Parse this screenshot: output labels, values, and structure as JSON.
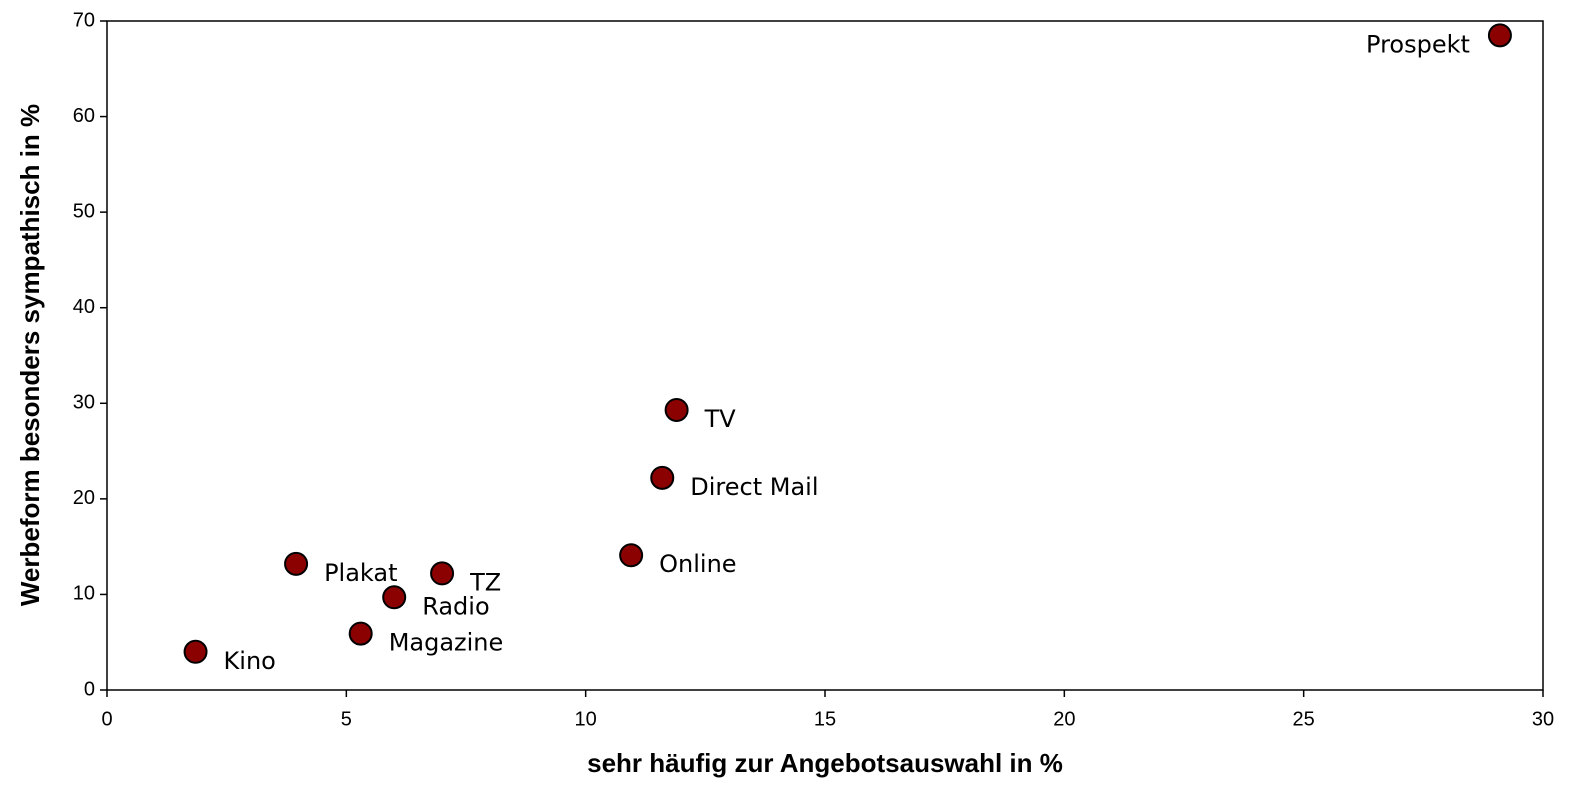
{
  "chart_data": {
    "type": "scatter",
    "x_label": "sehr häufig zur Angebotsauswahl in %",
    "y_label": "Werbeform besonders sympathisch in %",
    "labels": [
      "Prospekt",
      "TV",
      "Direct Mail",
      "Online",
      "TZ",
      "Plakat",
      "Radio",
      "Magazine",
      "Kino"
    ],
    "x": [
      29.1,
      11.9,
      11.6,
      10.95,
      7.0,
      3.95,
      6.0,
      5.3,
      1.85
    ],
    "values": [
      68.5,
      29.3,
      22.2,
      14.1,
      12.2,
      13.2,
      9.7,
      5.9,
      4.0
    ],
    "color": "#8b0000",
    "xlim": [
      0,
      30
    ],
    "xticks": [
      0,
      5,
      10,
      15,
      20,
      25,
      30
    ],
    "ylim": [
      0,
      70
    ],
    "yticks": [
      0,
      10,
      20,
      30,
      40,
      50,
      60,
      70
    ],
    "grid": false
  }
}
